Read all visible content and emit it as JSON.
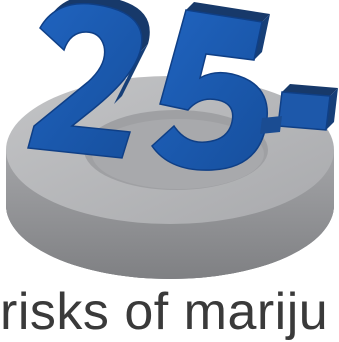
{
  "graphic": {
    "number_text": "25",
    "number_symbol": "-",
    "colors": {
      "number_front": "#1a56a8",
      "number_side": "#163f78",
      "number_top": "#1d3d6e",
      "disc_top": "#b3b4b6",
      "disc_side": "#8e8f92",
      "disc_inner": "#9c9da0"
    }
  },
  "caption": {
    "text": "risks of mariju"
  }
}
